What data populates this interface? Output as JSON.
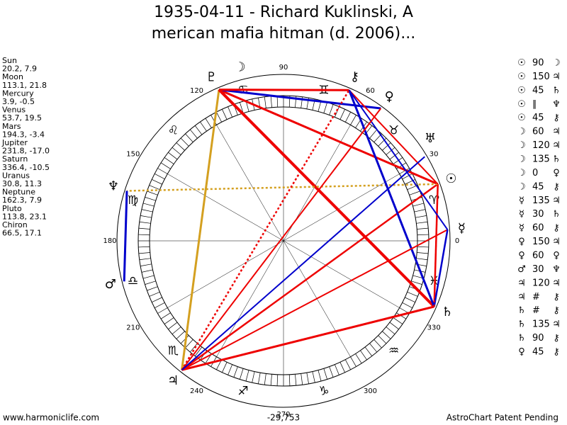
{
  "header": {
    "title_lines": [
      "1935-04-11 - Richard Kuklinski, A",
      "merican mafia hitman (d. 2006)..."
    ]
  },
  "planets": [
    {
      "name": "Sun",
      "position": "20.2, 7.9",
      "glyph": "☉"
    },
    {
      "name": "Moon",
      "position": "113.1, 21.8",
      "glyph": "☽"
    },
    {
      "name": "Mercury",
      "position": "3.9, -0.5",
      "glyph": "☿"
    },
    {
      "name": "Venus",
      "position": "53.7, 19.5",
      "glyph": "♀"
    },
    {
      "name": "Mars",
      "position": "194.3, -3.4",
      "glyph": "♂"
    },
    {
      "name": "Jupiter",
      "position": "231.8, -17.0",
      "glyph": "♃"
    },
    {
      "name": "Saturn",
      "position": "336.4, -10.5",
      "glyph": "♄"
    },
    {
      "name": "Uranus",
      "position": "30.8, 11.3",
      "glyph": "♅"
    },
    {
      "name": "Neptune",
      "position": "162.3, 7.9",
      "glyph": "♆"
    },
    {
      "name": "Pluto",
      "position": "113.8, 23.1",
      "glyph": "♇"
    },
    {
      "name": "Chiron",
      "position": "66.5, 17.1",
      "glyph": "⚷"
    }
  ],
  "signs": [
    "♈",
    "♉",
    "♊",
    "♋",
    "♌",
    "♍",
    "♎",
    "♏",
    "♐",
    "♑",
    "♒",
    "♓"
  ],
  "degree_labels": [
    "0",
    "30",
    "60",
    "90",
    "120",
    "150",
    "180",
    "210",
    "240",
    "270",
    "300",
    "330"
  ],
  "aspects": [
    [
      "☉",
      "90",
      "☽"
    ],
    [
      "☉",
      "150",
      "♃"
    ],
    [
      "☉",
      "45",
      "♄"
    ],
    [
      "☉",
      "∥",
      "♆"
    ],
    [
      "☉",
      "45",
      "⚷"
    ],
    [
      "☽",
      "60",
      "♃"
    ],
    [
      "☽",
      "120",
      "♃"
    ],
    [
      "☽",
      "135",
      "♄"
    ],
    [
      "☽",
      "0",
      "♀"
    ],
    [
      "☽",
      "45",
      "⚷"
    ],
    [
      "☿",
      "135",
      "♃"
    ],
    [
      "☿",
      "30",
      "♄"
    ],
    [
      "☿",
      "60",
      "⚷"
    ],
    [
      "♀",
      "150",
      "♃"
    ],
    [
      "♀",
      "60",
      "♀"
    ],
    [
      "♂",
      "30",
      "♆"
    ],
    [
      "♃",
      "120",
      "♃"
    ],
    [
      "♃",
      "#",
      "⚷"
    ],
    [
      "♄",
      "#",
      "⚷"
    ],
    [
      "♄",
      "135",
      "♃"
    ],
    [
      "♄",
      "90",
      "⚷"
    ],
    [
      "♀",
      "45",
      "⚷"
    ]
  ],
  "footer": {
    "left": "www.harmoniclife.com",
    "center": "-29,753",
    "right": "AstroChart Patent Pending"
  }
}
